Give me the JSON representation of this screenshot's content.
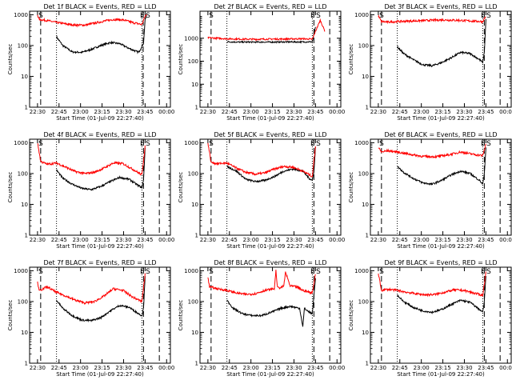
{
  "figure": {
    "background": "#ffffff",
    "events_color": "#000000",
    "lld_color": "#ff0000",
    "ylabel": "Counts/sec",
    "xlabel": "Start Time (01-Jul-09 22:27:40)",
    "x_tick_labels": [
      "22:30",
      "22:45",
      "23:00",
      "23:15",
      "23:30",
      "23:45",
      "00:00"
    ],
    "y_tick_labels": [
      "1",
      "10",
      "100",
      "1000"
    ]
  },
  "chart_data": [
    {
      "type": "line",
      "title": "Det 1f BLACK = Events, RED = LLD",
      "xlim": [
        -2.5,
        42
      ],
      "ylim": [
        1,
        1300
      ],
      "yscale": "log",
      "dashed_lines": [
        1,
        33.4,
        38.5
      ],
      "dotted_lines": [
        6,
        33
      ],
      "markers": [
        {
          "text": "S",
          "x": 0.3
        },
        {
          "text": "E",
          "x": 32.4
        },
        {
          "text": "S",
          "x": 34.2
        }
      ],
      "series": [
        {
          "name": "BLACK = Events",
          "color": "#000000",
          "x": [
            6.0,
            8.0,
            11.0,
            14.0,
            17.0,
            20.0,
            23.0,
            26.0,
            29.0,
            32.0,
            33.5,
            34.0,
            34.5
          ],
          "y": [
            190,
            100,
            62,
            60,
            75,
            100,
            125,
            115,
            80,
            60,
            120,
            700,
            950
          ]
        },
        {
          "name": "RED = LLD",
          "color": "#ff0000",
          "x": [
            0.0,
            0.5,
            3.0,
            6.0,
            9.0,
            12.0,
            15.0,
            18.0,
            21.0,
            24.0,
            27.0,
            30.0,
            33.0,
            34.0,
            34.5
          ],
          "y": [
            1000,
            700,
            650,
            560,
            500,
            460,
            460,
            530,
            620,
            700,
            680,
            560,
            480,
            900,
            1000
          ]
        }
      ]
    },
    {
      "type": "line",
      "title": "Det 2f BLACK = Events, RED = LLD",
      "xlim": [
        -2.5,
        42
      ],
      "ylim": [
        1,
        15000
      ],
      "yscale": "log",
      "dashed_lines": [
        1,
        33.5,
        38.5
      ],
      "dotted_lines": [
        6,
        33
      ],
      "markers": [
        {
          "text": "S",
          "x": 0.3
        },
        {
          "text": "E",
          "x": 32.4
        },
        {
          "text": "S",
          "x": 34.2
        }
      ],
      "series": [
        {
          "name": "BLACK = Events",
          "color": "#000000",
          "x": [
            6.0,
            10.0,
            15.0,
            20.0,
            25.0,
            30.0,
            33.0,
            34.0
          ],
          "y": [
            700,
            680,
            680,
            680,
            690,
            690,
            700,
            3000
          ]
        },
        {
          "name": "RED = LLD",
          "color": "#ff0000",
          "x": [
            0.0,
            3.0,
            6.0,
            10.0,
            15.0,
            20.0,
            25.0,
            30.0,
            33.0,
            34.0,
            35.5,
            37.0
          ],
          "y": [
            1050,
            1000,
            950,
            920,
            900,
            920,
            930,
            950,
            900,
            2000,
            6000,
            2000
          ]
        }
      ]
    },
    {
      "type": "line",
      "title": "Det 3f BLACK = Events, RED = LLD",
      "xlim": [
        -2.5,
        42
      ],
      "ylim": [
        1,
        1300
      ],
      "yscale": "log",
      "dashed_lines": [
        1,
        33.5,
        38.5
      ],
      "dotted_lines": [
        6,
        33
      ],
      "markers": [
        {
          "text": "S",
          "x": 0.3
        },
        {
          "text": "E",
          "x": 32.4
        },
        {
          "text": "S",
          "x": 34.2
        }
      ],
      "series": [
        {
          "name": "BLACK = Events",
          "color": "#000000",
          "x": [
            6.0,
            8.0,
            11.0,
            14.0,
            17.0,
            20.0,
            23.0,
            26.0,
            29.0,
            32.0,
            33.0,
            33.5,
            34.0
          ],
          "y": [
            90,
            55,
            35,
            24,
            22,
            28,
            40,
            60,
            55,
            35,
            28,
            60,
            700
          ]
        },
        {
          "name": "RED = LLD",
          "color": "#ff0000",
          "x": [
            0.0,
            1.0,
            3.0,
            6.0,
            10.0,
            15.0,
            20.0,
            25.0,
            30.0,
            33.0,
            34.0
          ],
          "y": [
            900,
            600,
            580,
            600,
            620,
            650,
            680,
            660,
            620,
            600,
            900
          ]
        }
      ]
    },
    {
      "type": "line",
      "title": "Det 4f BLACK = Events, RED = LLD",
      "xlim": [
        -2.5,
        42
      ],
      "ylim": [
        1,
        1300
      ],
      "yscale": "log",
      "dashed_lines": [
        1,
        33.5,
        38.5
      ],
      "dotted_lines": [
        6,
        33
      ],
      "markers": [
        {
          "text": "S",
          "x": 0.3
        },
        {
          "text": "E",
          "x": 32.4
        },
        {
          "text": "S",
          "x": 34.2
        }
      ],
      "series": [
        {
          "name": "BLACK = Events",
          "color": "#000000",
          "x": [
            6.0,
            8.0,
            11.0,
            14.0,
            17.0,
            20.0,
            23.0,
            26.0,
            29.0,
            32.0,
            33.0,
            33.5,
            34.0
          ],
          "y": [
            130,
            70,
            45,
            33,
            30,
            38,
            55,
            75,
            65,
            40,
            35,
            60,
            700
          ]
        },
        {
          "name": "RED = LLD",
          "color": "#ff0000",
          "x": [
            0.0,
            1.0,
            3.0,
            6.0,
            9.0,
            12.0,
            15.0,
            18.0,
            21.0,
            24.0,
            27.0,
            30.0,
            33.0,
            34.0
          ],
          "y": [
            1000,
            250,
            200,
            220,
            160,
            115,
            100,
            110,
            150,
            220,
            210,
            140,
            90,
            800
          ]
        }
      ]
    },
    {
      "type": "line",
      "title": "Det 5f BLACK = Events, RED = LLD",
      "xlim": [
        -2.5,
        42
      ],
      "ylim": [
        1,
        1300
      ],
      "yscale": "log",
      "dashed_lines": [
        1,
        33.5,
        38.5
      ],
      "dotted_lines": [
        6,
        33
      ],
      "markers": [
        {
          "text": "S",
          "x": 0.3
        },
        {
          "text": "E",
          "x": 32.4
        },
        {
          "text": "S",
          "x": 34.2
        }
      ],
      "series": [
        {
          "name": "BLACK = Events",
          "color": "#000000",
          "x": [
            6.0,
            9.0,
            12.0,
            15.0,
            18.0,
            21.0,
            24.0,
            27.0,
            30.0,
            32.0,
            33.0,
            33.5,
            34.0
          ],
          "y": [
            170,
            120,
            65,
            55,
            60,
            80,
            120,
            140,
            120,
            70,
            60,
            120,
            700
          ]
        },
        {
          "name": "RED = LLD",
          "color": "#ff0000",
          "x": [
            0.0,
            1.0,
            3.0,
            6.0,
            9.0,
            12.0,
            15.0,
            18.0,
            21.0,
            24.0,
            27.0,
            30.0,
            33.0,
            34.0
          ],
          "y": [
            1000,
            230,
            210,
            220,
            150,
            110,
            95,
            105,
            140,
            170,
            160,
            120,
            80,
            800
          ]
        }
      ]
    },
    {
      "type": "line",
      "title": "Det 6f BLACK = Events, RED = LLD",
      "xlim": [
        -2.5,
        42
      ],
      "ylim": [
        1,
        1300
      ],
      "yscale": "log",
      "dashed_lines": [
        1,
        33.5,
        38.5
      ],
      "dotted_lines": [
        6,
        33
      ],
      "markers": [
        {
          "text": "S",
          "x": 0.3
        },
        {
          "text": "E",
          "x": 32.4
        },
        {
          "text": "S",
          "x": 34.2
        }
      ],
      "series": [
        {
          "name": "BLACK = Events",
          "color": "#000000",
          "x": [
            6.0,
            8.0,
            11.0,
            14.0,
            17.0,
            20.0,
            23.0,
            26.0,
            29.0,
            32.0,
            33.0,
            33.5,
            34.0
          ],
          "y": [
            170,
            110,
            70,
            50,
            45,
            60,
            90,
            120,
            100,
            60,
            45,
            100,
            700
          ]
        },
        {
          "name": "RED = LLD",
          "color": "#ff0000",
          "x": [
            0.0,
            1.0,
            3.0,
            6.0,
            10.0,
            14.0,
            18.0,
            22.0,
            26.0,
            30.0,
            33.0,
            34.0
          ],
          "y": [
            700,
            500,
            550,
            500,
            420,
            360,
            350,
            400,
            500,
            420,
            380,
            900
          ]
        }
      ]
    },
    {
      "type": "line",
      "title": "Det 7f BLACK = Events, RED = LLD",
      "xlim": [
        -2.5,
        42
      ],
      "ylim": [
        1,
        1300
      ],
      "yscale": "log",
      "dashed_lines": [
        1,
        33.5,
        38.5
      ],
      "dotted_lines": [
        6,
        33
      ],
      "markers": [
        {
          "text": "S",
          "x": 0.3
        },
        {
          "text": "E",
          "x": 32.4
        },
        {
          "text": "S",
          "x": 34.2
        }
      ],
      "series": [
        {
          "name": "BLACK = Events",
          "color": "#000000",
          "x": [
            6.0,
            8.0,
            11.0,
            14.0,
            17.0,
            20.0,
            23.0,
            26.0,
            29.0,
            32.0,
            33.0,
            33.5,
            34.0
          ],
          "y": [
            110,
            60,
            35,
            25,
            24,
            30,
            50,
            75,
            65,
            40,
            35,
            60,
            700
          ]
        },
        {
          "name": "RED = LLD",
          "color": "#ff0000",
          "x": [
            0.0,
            0.5,
            3.0,
            6.0,
            9.0,
            12.0,
            15.0,
            18.0,
            21.0,
            24.0,
            27.0,
            30.0,
            33.0,
            34.0
          ],
          "y": [
            450,
            220,
            300,
            200,
            150,
            110,
            90,
            100,
            150,
            260,
            230,
            140,
            100,
            800
          ]
        }
      ]
    },
    {
      "type": "line",
      "title": "Det 8f BLACK = Events, RED = LLD",
      "xlim": [
        -2.5,
        42
      ],
      "ylim": [
        1,
        1300
      ],
      "yscale": "log",
      "dashed_lines": [
        1,
        33.5,
        38.5
      ],
      "dotted_lines": [
        6,
        33
      ],
      "markers": [
        {
          "text": "S",
          "x": 0.3
        },
        {
          "text": "E",
          "x": 32.4
        },
        {
          "text": "S",
          "x": 34.2
        }
      ],
      "series": [
        {
          "name": "BLACK = Events",
          "color": "#000000",
          "x": [
            6.0,
            8.0,
            11.0,
            14.0,
            17.0,
            20.0,
            23.0,
            26.0,
            29.0,
            30.0,
            30.5,
            31.0,
            32.0,
            33.0,
            34.0
          ],
          "y": [
            110,
            60,
            40,
            35,
            35,
            45,
            60,
            70,
            60,
            15,
            60,
            55,
            45,
            40,
            600
          ]
        },
        {
          "name": "RED = LLD",
          "color": "#ff0000",
          "x": [
            0.0,
            0.5,
            3.0,
            6.0,
            9.0,
            12.0,
            15.0,
            18.0,
            21.0,
            21.5,
            22.0,
            23.0,
            24.0,
            24.5,
            26.0,
            28.0,
            30.0,
            33.0,
            34.0
          ],
          "y": [
            600,
            300,
            260,
            230,
            190,
            170,
            180,
            230,
            260,
            1000,
            280,
            280,
            320,
            900,
            320,
            300,
            230,
            190,
            800
          ]
        }
      ]
    },
    {
      "type": "line",
      "title": "Det 9f BLACK = Events, RED = LLD",
      "xlim": [
        -2.5,
        42
      ],
      "ylim": [
        1,
        1300
      ],
      "yscale": "log",
      "dashed_lines": [
        1,
        33.5,
        38.5
      ],
      "dotted_lines": [
        6,
        33
      ],
      "markers": [
        {
          "text": "S",
          "x": 0.3
        },
        {
          "text": "E",
          "x": 32.4
        },
        {
          "text": "S",
          "x": 34.2
        }
      ],
      "series": [
        {
          "name": "BLACK = Events",
          "color": "#000000",
          "x": [
            6.0,
            8.0,
            11.0,
            14.0,
            17.0,
            20.0,
            23.0,
            26.0,
            29.0,
            32.0,
            33.0,
            33.5,
            34.0
          ],
          "y": [
            160,
            100,
            65,
            50,
            45,
            55,
            80,
            110,
            95,
            55,
            45,
            100,
            700
          ]
        },
        {
          "name": "RED = LLD",
          "color": "#ff0000",
          "x": [
            0.0,
            1.0,
            3.0,
            6.0,
            9.0,
            12.0,
            15.0,
            18.0,
            21.0,
            24.0,
            27.0,
            30.0,
            33.0,
            34.0
          ],
          "y": [
            800,
            230,
            250,
            230,
            200,
            180,
            165,
            170,
            200,
            240,
            230,
            190,
            160,
            900
          ]
        }
      ]
    }
  ]
}
